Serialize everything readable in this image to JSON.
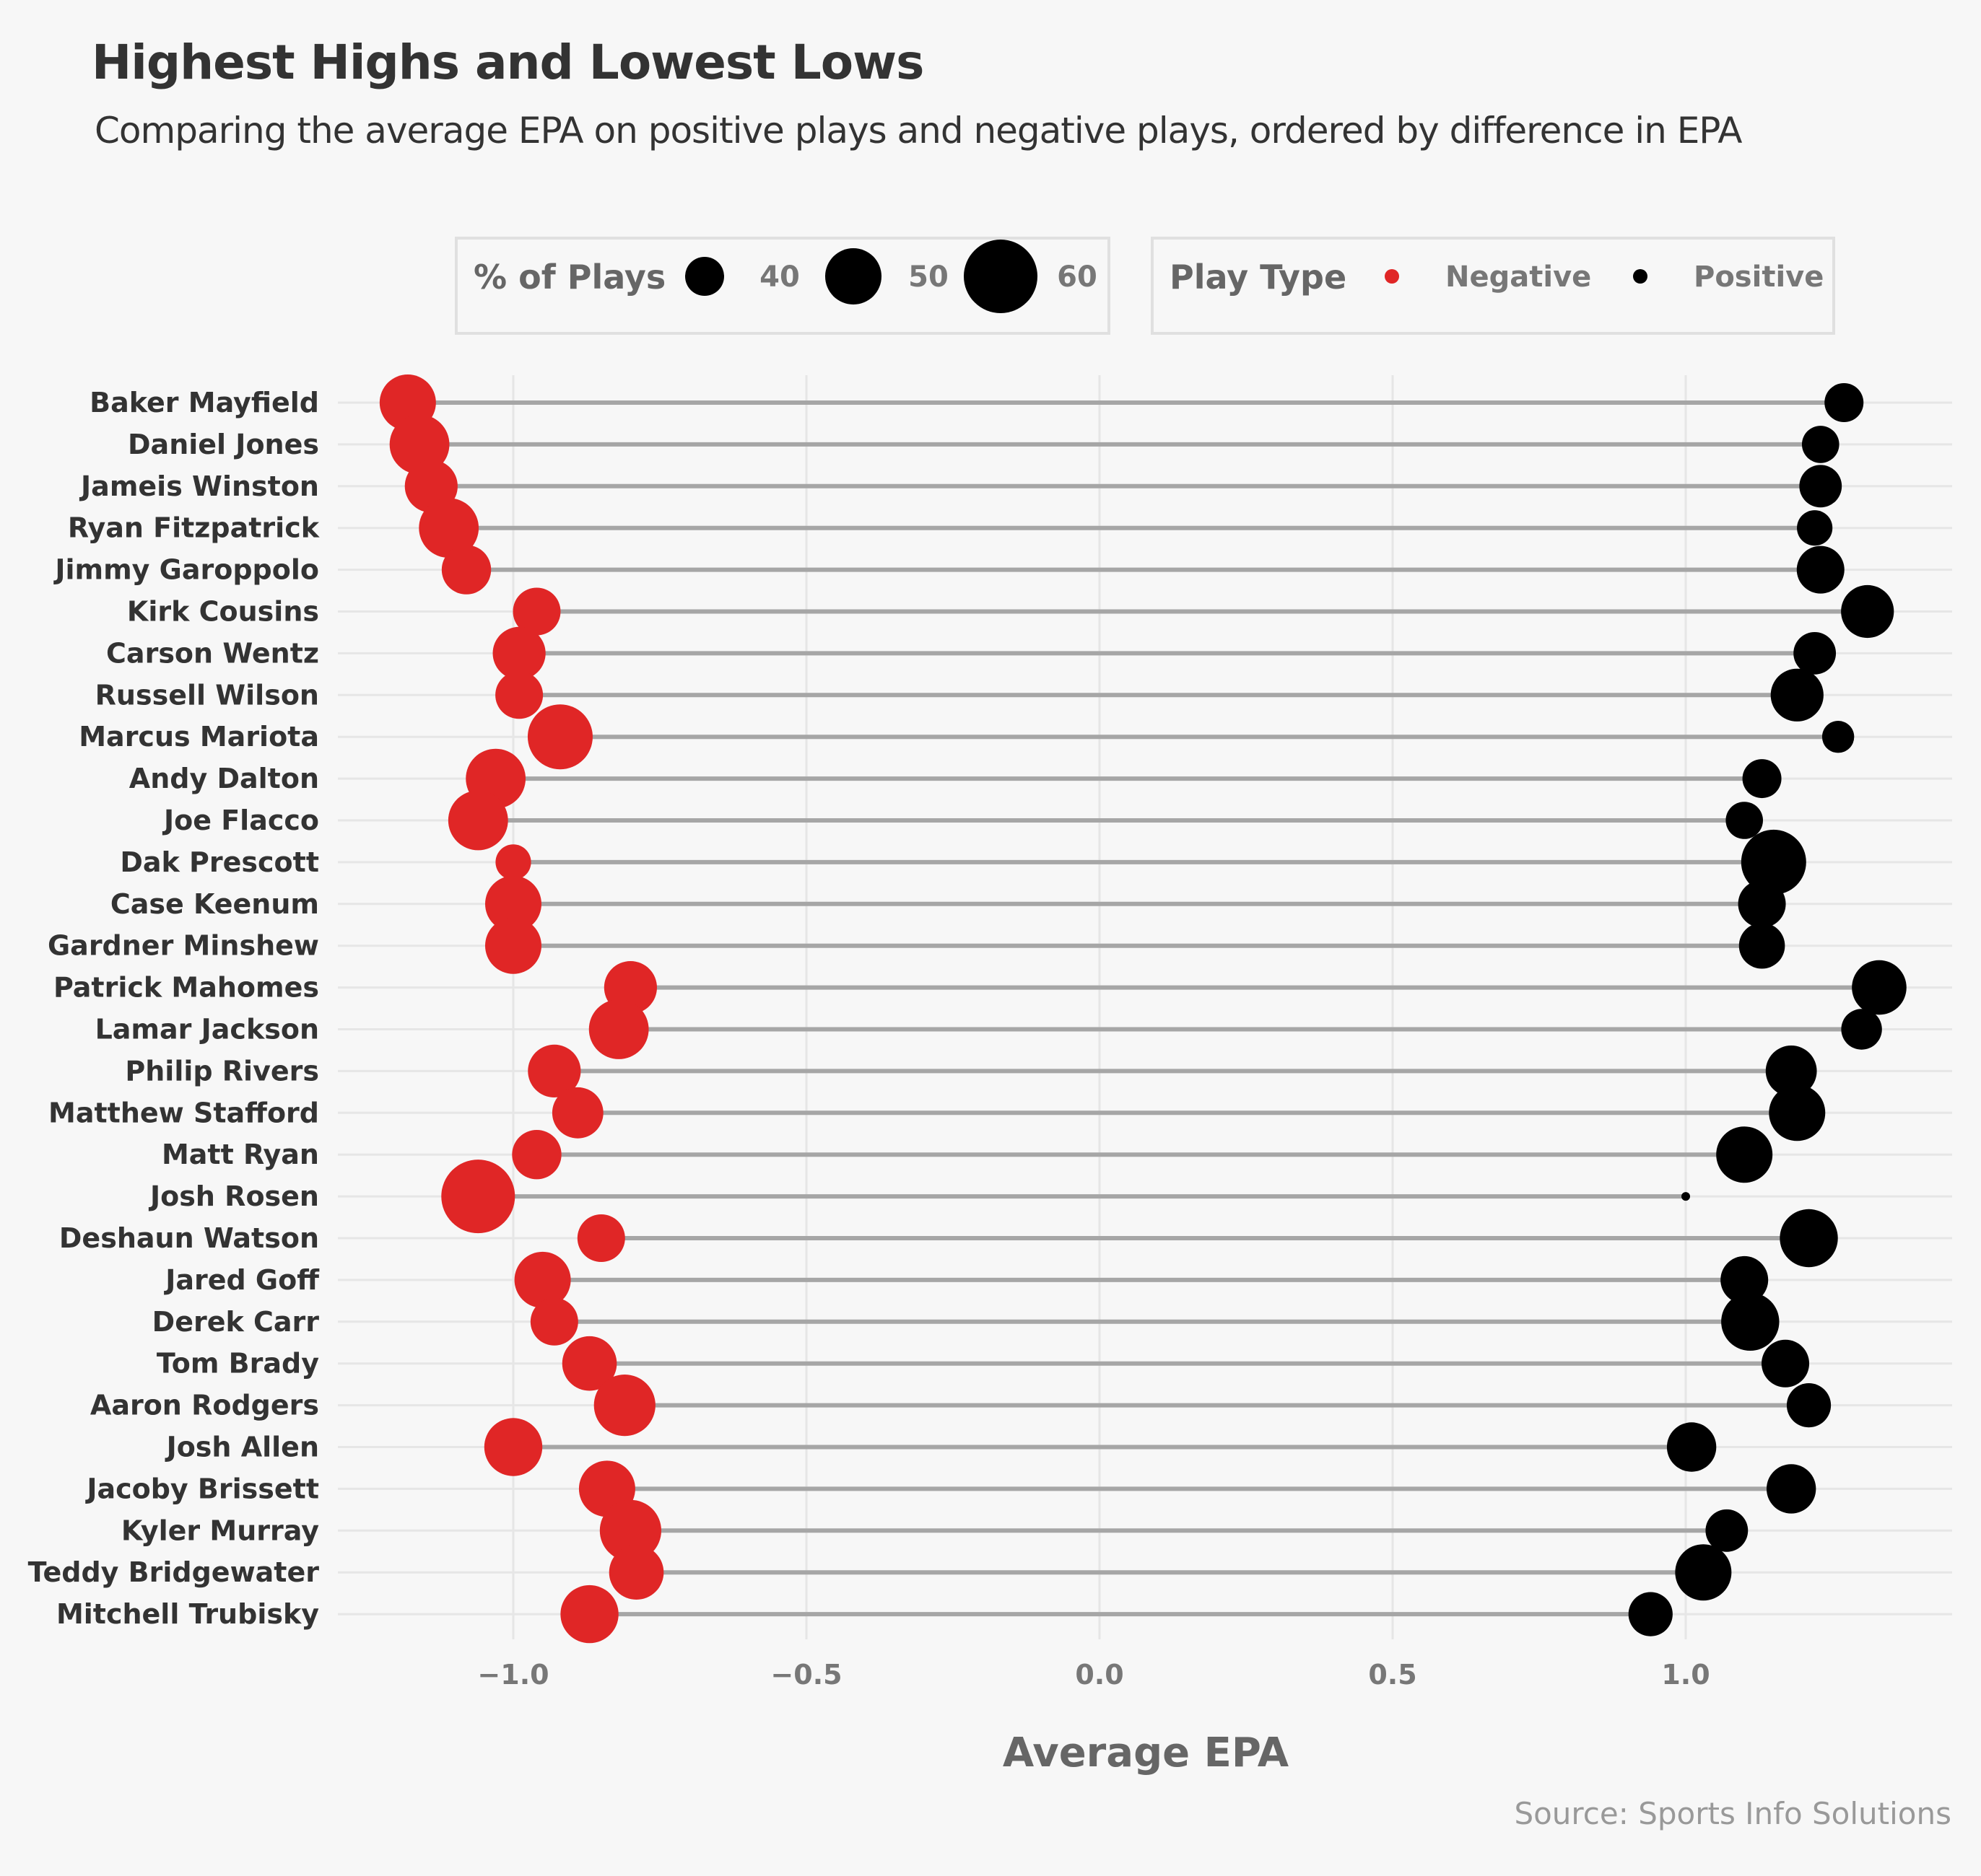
{
  "title": "Highest Highs and Lowest Lows",
  "subtitle": "Comparing the average EPA on positive plays and negative plays, ordered by difference in EPA",
  "caption": "Source: Sports Info Solutions",
  "legend": {
    "size_title": "% of Plays",
    "size_items": [
      {
        "label": "40",
        "value": 40
      },
      {
        "label": "50",
        "value": 50
      },
      {
        "label": "60",
        "value": 60
      }
    ],
    "color_title": "Play Type",
    "color_items": [
      {
        "label": "Negative",
        "color": "#e02626"
      },
      {
        "label": "Positive",
        "color": "#000000"
      }
    ]
  },
  "chart_data": {
    "type": "scatter",
    "xlabel": "Average EPA",
    "xlim": [
      -1.26,
      1.36
    ],
    "xticks": [
      {
        "value": -1.0,
        "label": "−1.0"
      },
      {
        "value": -0.5,
        "label": "−0.5"
      },
      {
        "value": 0.0,
        "label": "0.0"
      },
      {
        "value": 0.5,
        "label": "0.5"
      },
      {
        "value": 1.0,
        "label": "1.0"
      }
    ],
    "grid": true,
    "series_colors": {
      "negative": "#e02626",
      "positive": "#000000",
      "segment": "#a6a6a6"
    },
    "players": [
      {
        "name": "Baker Mayfield",
        "neg": -1.18,
        "neg_pct": 50,
        "pos": 1.27,
        "pos_pct": 40
      },
      {
        "name": "Daniel Jones",
        "neg": -1.16,
        "neg_pct": 52,
        "pos": 1.23,
        "pos_pct": 39
      },
      {
        "name": "Jameis Winston",
        "neg": -1.14,
        "neg_pct": 48,
        "pos": 1.23,
        "pos_pct": 42
      },
      {
        "name": "Ryan Fitzpatrick",
        "neg": -1.11,
        "neg_pct": 52,
        "pos": 1.22,
        "pos_pct": 38
      },
      {
        "name": "Jimmy Garoppolo",
        "neg": -1.08,
        "neg_pct": 46,
        "pos": 1.23,
        "pos_pct": 45
      },
      {
        "name": "Kirk Cousins",
        "neg": -0.96,
        "neg_pct": 45,
        "pos": 1.31,
        "pos_pct": 48
      },
      {
        "name": "Carson Wentz",
        "neg": -0.99,
        "neg_pct": 48,
        "pos": 1.22,
        "pos_pct": 42
      },
      {
        "name": "Russell Wilson",
        "neg": -0.99,
        "neg_pct": 45,
        "pos": 1.19,
        "pos_pct": 48
      },
      {
        "name": "Marcus Mariota",
        "neg": -0.92,
        "neg_pct": 55,
        "pos": 1.26,
        "pos_pct": 36
      },
      {
        "name": "Andy Dalton",
        "neg": -1.03,
        "neg_pct": 52,
        "pos": 1.13,
        "pos_pct": 40
      },
      {
        "name": "Joe Flacco",
        "neg": -1.06,
        "neg_pct": 52,
        "pos": 1.1,
        "pos_pct": 39
      },
      {
        "name": "Dak Prescott",
        "neg": -1.0,
        "neg_pct": 38,
        "pos": 1.15,
        "pos_pct": 55
      },
      {
        "name": "Case Keenum",
        "neg": -1.0,
        "neg_pct": 50,
        "pos": 1.13,
        "pos_pct": 45
      },
      {
        "name": "Gardner Minshew",
        "neg": -1.0,
        "neg_pct": 50,
        "pos": 1.13,
        "pos_pct": 44
      },
      {
        "name": "Patrick Mahomes",
        "neg": -0.8,
        "neg_pct": 48,
        "pos": 1.33,
        "pos_pct": 49
      },
      {
        "name": "Lamar Jackson",
        "neg": -0.82,
        "neg_pct": 52,
        "pos": 1.3,
        "pos_pct": 41
      },
      {
        "name": "Philip Rivers",
        "neg": -0.93,
        "neg_pct": 48,
        "pos": 1.18,
        "pos_pct": 47
      },
      {
        "name": "Matthew Stafford",
        "neg": -0.89,
        "neg_pct": 47,
        "pos": 1.19,
        "pos_pct": 50
      },
      {
        "name": "Matt Ryan",
        "neg": -0.96,
        "neg_pct": 46,
        "pos": 1.1,
        "pos_pct": 50
      },
      {
        "name": "Josh Rosen",
        "neg": -1.06,
        "neg_pct": 60,
        "pos": 1.0,
        "pos_pct": 20
      },
      {
        "name": "Deshaun Watson",
        "neg": -0.85,
        "neg_pct": 45,
        "pos": 1.21,
        "pos_pct": 51
      },
      {
        "name": "Jared Goff",
        "neg": -0.95,
        "neg_pct": 50,
        "pos": 1.1,
        "pos_pct": 45
      },
      {
        "name": "Derek Carr",
        "neg": -0.93,
        "neg_pct": 45,
        "pos": 1.11,
        "pos_pct": 51
      },
      {
        "name": "Tom Brady",
        "neg": -0.87,
        "neg_pct": 49,
        "pos": 1.17,
        "pos_pct": 45
      },
      {
        "name": "Aaron Rodgers",
        "neg": -0.81,
        "neg_pct": 53,
        "pos": 1.21,
        "pos_pct": 43
      },
      {
        "name": "Josh Allen",
        "neg": -1.0,
        "neg_pct": 51,
        "pos": 1.01,
        "pos_pct": 46
      },
      {
        "name": "Jacoby Brissett",
        "neg": -0.84,
        "neg_pct": 50,
        "pos": 1.18,
        "pos_pct": 46
      },
      {
        "name": "Kyler Murray",
        "neg": -0.8,
        "neg_pct": 53,
        "pos": 1.07,
        "pos_pct": 42
      },
      {
        "name": "Teddy Bridgewater",
        "neg": -0.79,
        "neg_pct": 49,
        "pos": 1.03,
        "pos_pct": 50
      },
      {
        "name": "Mitchell Trubisky",
        "neg": -0.87,
        "neg_pct": 51,
        "pos": 0.94,
        "pos_pct": 43
      }
    ]
  }
}
